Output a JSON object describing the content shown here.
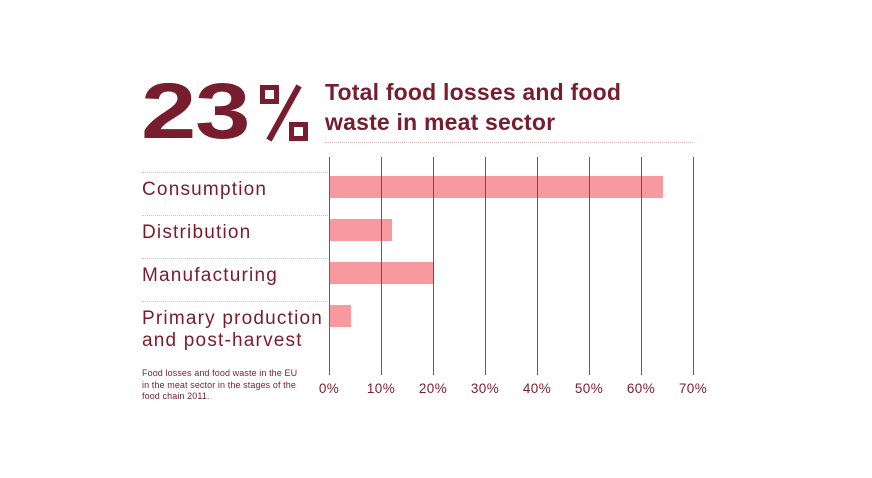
{
  "header": {
    "stat_value": "23%",
    "stat_digits": "23",
    "title": "Total food losses and food\nwaste in meat sector"
  },
  "footnote": "Food losses and food waste in the EU\nin the meat sector in the stages of the\nfood chain 2011.",
  "colors": {
    "maroon": "#771d2e",
    "bar_pink": "#f7999e",
    "gridline": "#6b3443",
    "dotted_line": "#dfb9bd"
  },
  "chart_data": {
    "type": "bar",
    "orientation": "horizontal",
    "title": "Total food losses and food waste in meat sector",
    "stat_callout": "23%",
    "categories": [
      "Consumption",
      "Distribution",
      "Manufacturing",
      "Primary production and post-harvest"
    ],
    "values": [
      64,
      12,
      20,
      4
    ],
    "unit": "%",
    "xlim": [
      0,
      70
    ],
    "x_ticks": [
      "0%",
      "10%",
      "20%",
      "30%",
      "40%",
      "50%",
      "60%",
      "70%"
    ],
    "grid": "vertical-only",
    "legend": "none",
    "source_note": "Food losses and food waste in the EU in the meat sector in the stages of the food chain 2011."
  }
}
